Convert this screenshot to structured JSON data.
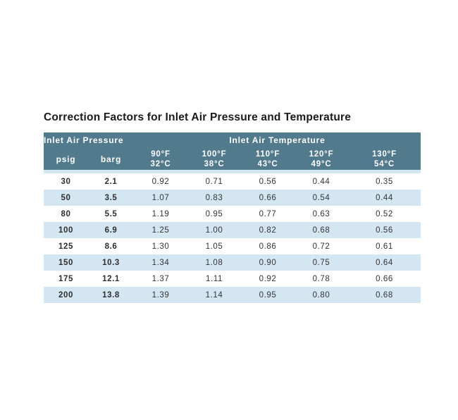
{
  "title": "Correction Factors for Inlet Air Pressure and Temperature",
  "colors": {
    "page_background": "#ffffff",
    "header_background": "#527a8d",
    "header_text": "#ffffff",
    "stripe_background": "#d3e6f2",
    "row_background": "#ffffff",
    "cell_text": "#333333",
    "title_text": "#1a1a1a"
  },
  "table": {
    "header": {
      "pressure_group_label": "Inlet Air Pressure",
      "temperature_group_label": "Inlet Air Temperature",
      "pressure_columns": [
        "psig",
        "barg"
      ],
      "temperature_columns": [
        {
          "fahrenheit": "90°F",
          "celsius": "32°C"
        },
        {
          "fahrenheit": "100°F",
          "celsius": "38°C"
        },
        {
          "fahrenheit": "110°F",
          "celsius": "43°C"
        },
        {
          "fahrenheit": "120°F",
          "celsius": "49°C"
        },
        {
          "fahrenheit": "130°F",
          "celsius": "54°C"
        }
      ]
    },
    "rows": [
      {
        "psig": "30",
        "barg": "2.1",
        "factors": [
          "0.92",
          "0.71",
          "0.56",
          "0.44",
          "0.35"
        ]
      },
      {
        "psig": "50",
        "barg": "3.5",
        "factors": [
          "1.07",
          "0.83",
          "0.66",
          "0.54",
          "0.44"
        ]
      },
      {
        "psig": "80",
        "barg": "5.5",
        "factors": [
          "1.19",
          "0.95",
          "0.77",
          "0.63",
          "0.52"
        ]
      },
      {
        "psig": "100",
        "barg": "6.9",
        "factors": [
          "1.25",
          "1.00",
          "0.82",
          "0.68",
          "0.56"
        ]
      },
      {
        "psig": "125",
        "barg": "8.6",
        "factors": [
          "1.30",
          "1.05",
          "0.86",
          "0.72",
          "0.61"
        ]
      },
      {
        "psig": "150",
        "barg": "10.3",
        "factors": [
          "1.34",
          "1.08",
          "0.90",
          "0.75",
          "0.64"
        ]
      },
      {
        "psig": "175",
        "barg": "12.1",
        "factors": [
          "1.37",
          "1.11",
          "0.92",
          "0.78",
          "0.66"
        ]
      },
      {
        "psig": "200",
        "barg": "13.8",
        "factors": [
          "1.39",
          "1.14",
          "0.95",
          "0.80",
          "0.68"
        ]
      }
    ]
  },
  "chart_data": {
    "type": "table",
    "title": "Correction Factors for Inlet Air Pressure and Temperature",
    "column_groups": [
      "Inlet Air Pressure",
      "Inlet Air Temperature"
    ],
    "columns": [
      "psig",
      "barg",
      "90°F 32°C",
      "100°F 38°C",
      "110°F 43°C",
      "120°F 49°C",
      "130°F 54°C"
    ],
    "rows": [
      [
        30,
        2.1,
        0.92,
        0.71,
        0.56,
        0.44,
        0.35
      ],
      [
        50,
        3.5,
        1.07,
        0.83,
        0.66,
        0.54,
        0.44
      ],
      [
        80,
        5.5,
        1.19,
        0.95,
        0.77,
        0.63,
        0.52
      ],
      [
        100,
        6.9,
        1.25,
        1.0,
        0.82,
        0.68,
        0.56
      ],
      [
        125,
        8.6,
        1.3,
        1.05,
        0.86,
        0.72,
        0.61
      ],
      [
        150,
        10.3,
        1.34,
        1.08,
        0.9,
        0.75,
        0.64
      ],
      [
        175,
        12.1,
        1.37,
        1.11,
        0.92,
        0.78,
        0.66
      ],
      [
        200,
        13.8,
        1.39,
        1.14,
        0.95,
        0.8,
        0.68
      ]
    ]
  }
}
